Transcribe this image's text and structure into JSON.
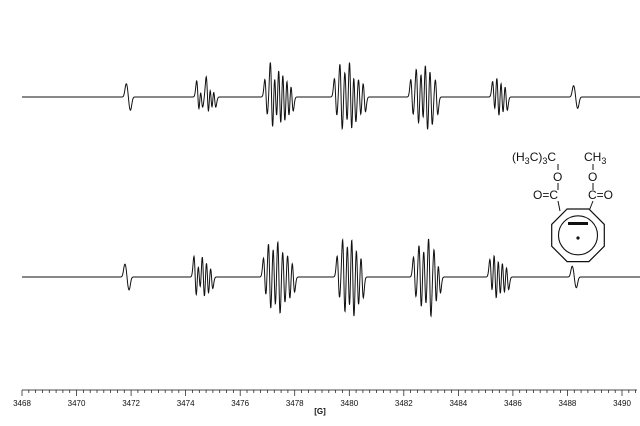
{
  "chart_data": {
    "type": "line",
    "title": "",
    "xlabel": "[G]",
    "ylabel": "",
    "xlim": [
      3468,
      3491
    ],
    "major_ticks": [
      3468,
      3470,
      3472,
      3474,
      3476,
      3478,
      3480,
      3482,
      3484,
      3486,
      3488,
      3490
    ],
    "minor_tick_step": 0.25,
    "grid": false,
    "legend": "none",
    "line_color": "#111111",
    "series": [
      {
        "groups": [
          {
            "center": 3471.9,
            "amp": 0.35,
            "lines": [
              [
                -0.06,
                0.6
              ],
              [
                0,
                1.0
              ],
              [
                0.06,
                0.6
              ]
            ]
          },
          {
            "center": 3474.8,
            "amp": 0.55,
            "lines": [
              [
                -0.35,
                0.8
              ],
              [
                -0.22,
                0.5
              ],
              [
                0.0,
                1.0
              ],
              [
                0.13,
                0.7
              ],
              [
                0.26,
                0.5
              ]
            ]
          },
          {
            "center": 3477.45,
            "amp": 0.95,
            "lines": [
              [
                -0.5,
                0.5
              ],
              [
                -0.3,
                1.0
              ],
              [
                -0.15,
                0.7
              ],
              [
                0.0,
                0.9
              ],
              [
                0.15,
                0.8
              ],
              [
                0.3,
                0.6
              ],
              [
                0.45,
                0.4
              ]
            ]
          },
          {
            "center": 3480.0,
            "amp": 1.0,
            "lines": [
              [
                -0.5,
                0.5
              ],
              [
                -0.3,
                0.9
              ],
              [
                -0.12,
                0.7
              ],
              [
                0.05,
                1.0
              ],
              [
                0.2,
                0.7
              ],
              [
                0.38,
                0.5
              ],
              [
                0.55,
                0.4
              ]
            ]
          },
          {
            "center": 3482.75,
            "amp": 0.95,
            "lines": [
              [
                -0.45,
                0.5
              ],
              [
                -0.25,
                0.8
              ],
              [
                -0.08,
                0.7
              ],
              [
                0.08,
                1.0
              ],
              [
                0.25,
                0.8
              ],
              [
                0.45,
                0.5
              ]
            ]
          },
          {
            "center": 3485.55,
            "amp": 0.6,
            "lines": [
              [
                -0.25,
                0.7
              ],
              [
                -0.1,
                1.0
              ],
              [
                0.05,
                0.8
              ],
              [
                0.2,
                0.6
              ]
            ]
          },
          {
            "center": 3488.3,
            "amp": 0.3,
            "lines": [
              [
                -0.06,
                0.6
              ],
              [
                0,
                1.0
              ],
              [
                0.06,
                0.6
              ]
            ]
          }
        ]
      },
      {
        "groups": [
          {
            "center": 3471.85,
            "amp": 0.3,
            "lines": [
              [
                -0.06,
                0.6
              ],
              [
                0,
                1.0
              ],
              [
                0.06,
                0.6
              ]
            ]
          },
          {
            "center": 3474.7,
            "amp": 0.55,
            "lines": [
              [
                -0.35,
                0.9
              ],
              [
                -0.2,
                0.6
              ],
              [
                -0.05,
                1.0
              ],
              [
                0.1,
                0.8
              ],
              [
                0.25,
                0.5
              ]
            ]
          },
          {
            "center": 3477.4,
            "amp": 0.9,
            "lines": [
              [
                -0.5,
                0.5
              ],
              [
                -0.32,
                0.9
              ],
              [
                -0.15,
                0.8
              ],
              [
                0.02,
                1.0
              ],
              [
                0.2,
                0.7
              ],
              [
                0.38,
                0.6
              ],
              [
                0.55,
                0.4
              ]
            ]
          },
          {
            "center": 3480.05,
            "amp": 1.0,
            "lines": [
              [
                -0.45,
                0.5
              ],
              [
                -0.25,
                0.9
              ],
              [
                -0.08,
                0.8
              ],
              [
                0.08,
                1.0
              ],
              [
                0.25,
                0.7
              ],
              [
                0.42,
                0.5
              ]
            ]
          },
          {
            "center": 3482.85,
            "amp": 0.95,
            "lines": [
              [
                -0.45,
                0.5
              ],
              [
                -0.25,
                0.8
              ],
              [
                -0.08,
                0.7
              ],
              [
                0.1,
                1.0
              ],
              [
                0.3,
                0.7
              ],
              [
                0.45,
                0.4
              ]
            ]
          },
          {
            "center": 3485.5,
            "amp": 0.6,
            "lines": [
              [
                -0.3,
                0.7
              ],
              [
                -0.15,
                1.0
              ],
              [
                0.0,
                0.8
              ],
              [
                0.15,
                0.7
              ],
              [
                0.3,
                0.5
              ]
            ]
          },
          {
            "center": 3488.25,
            "amp": 0.25,
            "lines": [
              [
                -0.06,
                0.6
              ],
              [
                0,
                1.0
              ],
              [
                0.06,
                0.6
              ]
            ]
          }
        ]
      }
    ]
  },
  "structure": {
    "substituent_left": "(H3C)3C",
    "substituent_left_main": "(H",
    "substituent_left_sub1": "3",
    "substituent_left_mid": "C)",
    "substituent_left_sub2": "3",
    "substituent_left_end": "C",
    "substituent_right": "CH3",
    "substituent_right_main": "CH",
    "substituent_right_sub": "3",
    "ester_o": "O",
    "carbonyl_left": "O=C",
    "carbonyl_right": "C=O"
  }
}
